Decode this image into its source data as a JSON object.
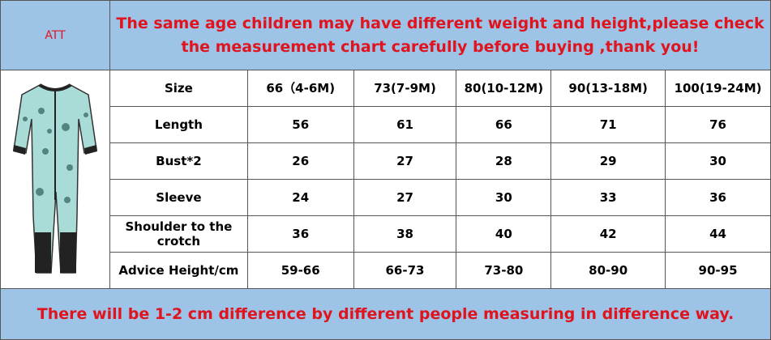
{
  "header": {
    "label": "ATT",
    "notice": [
      "The same age children may have different weight and height,please check",
      "the measurement chart carefully before buying ,thank you!"
    ]
  },
  "table": {
    "columns": [
      "Size",
      "66（4-6M)",
      "73(7-9M)",
      "80(10-12M)",
      "90(13-18M)",
      "100(19-24M)"
    ],
    "rows": [
      [
        "Length",
        "56",
        "61",
        "66",
        "71",
        "76"
      ],
      [
        "Bust*2",
        "26",
        "27",
        "28",
        "29",
        "30"
      ],
      [
        "Sleeve",
        "24",
        "27",
        "30",
        "33",
        "36"
      ],
      [
        "Shoulder to the crotch",
        "36",
        "38",
        "40",
        "42",
        "44"
      ],
      [
        "Advice Height/cm",
        "59-66",
        "66-73",
        "73-80",
        "80-90",
        "90-95"
      ]
    ]
  },
  "footer": "There will be 1-2 cm difference by different people measuring in difference way."
}
